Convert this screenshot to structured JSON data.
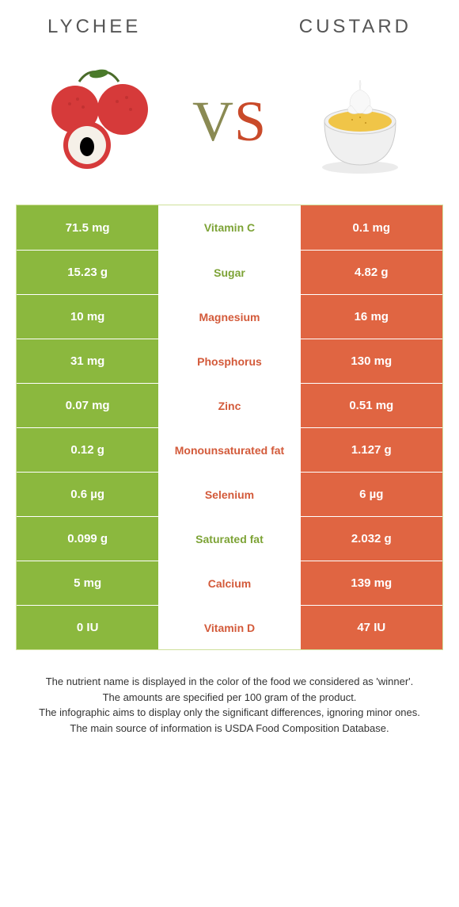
{
  "header": {
    "left": "Lychee",
    "right": "Custard"
  },
  "vs": {
    "v": "V",
    "s": "S"
  },
  "colors": {
    "green": "#8bb83e",
    "orange": "#e06542",
    "green_text": "#7da336",
    "orange_text": "#d35a3a"
  },
  "rows": [
    {
      "left": "71.5 mg",
      "label": "Vitamin C",
      "right": "0.1 mg",
      "winner": "left"
    },
    {
      "left": "15.23 g",
      "label": "Sugar",
      "right": "4.82 g",
      "winner": "left"
    },
    {
      "left": "10 mg",
      "label": "Magnesium",
      "right": "16 mg",
      "winner": "right"
    },
    {
      "left": "31 mg",
      "label": "Phosphorus",
      "right": "130 mg",
      "winner": "right"
    },
    {
      "left": "0.07 mg",
      "label": "Zinc",
      "right": "0.51 mg",
      "winner": "right"
    },
    {
      "left": "0.12 g",
      "label": "Monounsaturated fat",
      "right": "1.127 g",
      "winner": "right"
    },
    {
      "left": "0.6 µg",
      "label": "Selenium",
      "right": "6 µg",
      "winner": "right"
    },
    {
      "left": "0.099 g",
      "label": "Saturated fat",
      "right": "2.032 g",
      "winner": "left"
    },
    {
      "left": "5 mg",
      "label": "Calcium",
      "right": "139 mg",
      "winner": "right"
    },
    {
      "left": "0 IU",
      "label": "Vitamin D",
      "right": "47 IU",
      "winner": "right"
    }
  ],
  "footer": {
    "line1": "The nutrient name is displayed in the color of the food we considered as 'winner'.",
    "line2": "The amounts are specified per 100 gram of the product.",
    "line3": "The infographic aims to display only the significant differences, ignoring minor ones.",
    "line4": "The main source of information is USDA Food Composition Database."
  }
}
